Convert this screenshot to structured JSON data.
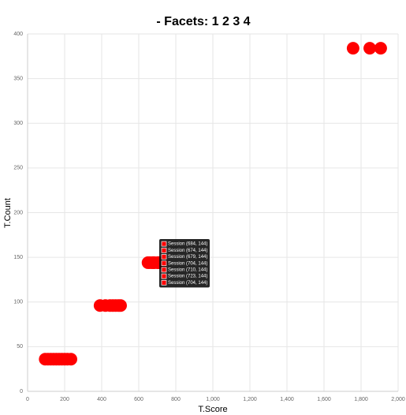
{
  "chart_data": {
    "type": "scatter",
    "title": "- Facets: 1 2 3 4",
    "x_label": "T.Score",
    "y_label": "T.Count",
    "series": [
      {
        "name": "Session",
        "color": "#ff0000",
        "x": [
          95,
          110,
          125,
          140,
          155,
          170,
          185,
          200,
          215,
          234,
          391,
          420,
          445,
          460,
          475,
          490,
          502,
          650,
          660,
          674,
          679,
          684,
          704,
          704,
          710,
          723,
          1757,
          1847,
          1906
        ],
        "values": [
          36,
          36,
          36,
          36,
          36,
          36,
          36,
          36,
          36,
          36,
          96,
          96,
          96,
          96,
          96,
          96,
          96,
          144,
          144,
          144,
          144,
          144,
          144,
          144,
          144,
          144,
          384,
          384,
          384
        ]
      }
    ],
    "xlim": [
      0,
      2000
    ],
    "xticks": [
      0,
      200,
      400,
      600,
      800,
      {
        "value": 1000,
        "label": "1,000"
      },
      {
        "value": 1200,
        "label": "1,200"
      },
      {
        "value": 1400,
        "label": "1,400"
      },
      {
        "value": 1600,
        "label": "1,600"
      },
      {
        "value": 1800,
        "label": "1,800"
      },
      {
        "value": 2000,
        "label": "2,000"
      }
    ],
    "ylim": [
      0,
      400
    ],
    "yticks": [
      0,
      50,
      100,
      150,
      200,
      250,
      300,
      350,
      400
    ],
    "grid": true,
    "tooltip": [
      "Session (684, 144)",
      "Session (674, 144)",
      "Session (679, 144)",
      "Session (704, 144)",
      "Session (710, 144)",
      "Session (723, 144)",
      "Session (704, 144)"
    ]
  }
}
